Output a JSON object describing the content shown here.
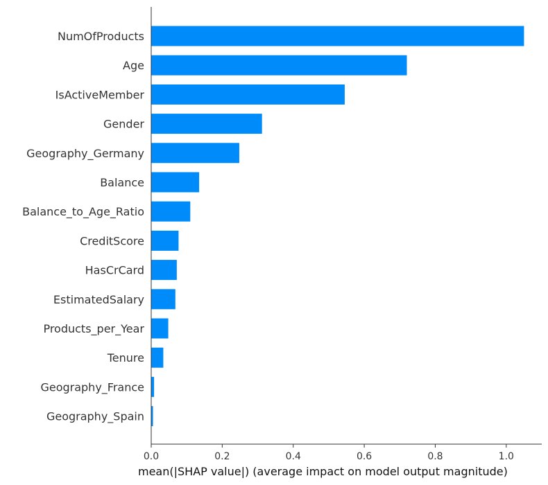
{
  "chart_data": {
    "type": "bar",
    "orientation": "horizontal",
    "categories": [
      "NumOfProducts",
      "Age",
      "IsActiveMember",
      "Gender",
      "Geography_Germany",
      "Balance",
      "Balance_to_Age_Ratio",
      "CreditScore",
      "HasCrCard",
      "EstimatedSalary",
      "Products_per_Year",
      "Tenure",
      "Geography_France",
      "Geography_Spain"
    ],
    "values": [
      1.05,
      0.72,
      0.545,
      0.312,
      0.248,
      0.135,
      0.11,
      0.077,
      0.072,
      0.068,
      0.048,
      0.034,
      0.008,
      0.005
    ],
    "xlabel": "mean(|SHAP value|) (average impact on model output magnitude)",
    "ylabel": "",
    "title": "",
    "xlim": [
      0,
      1.1
    ],
    "xticks": [
      "0.0",
      "0.2",
      "0.4",
      "0.6",
      "0.8",
      "1.0"
    ],
    "grid": false,
    "bar_color": "#008bfb"
  }
}
